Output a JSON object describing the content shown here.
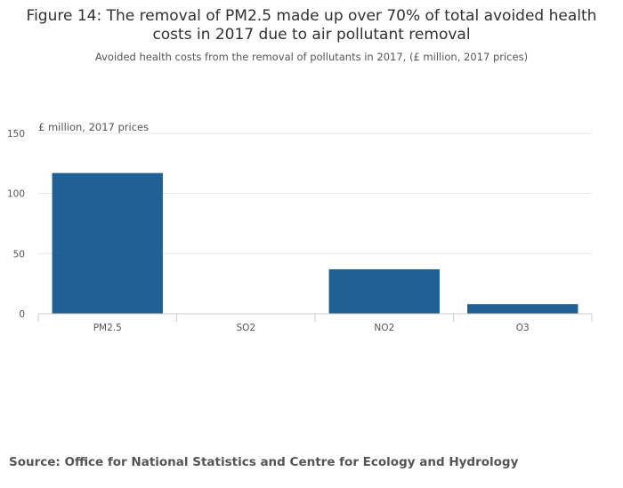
{
  "chart_data": {
    "type": "bar",
    "title": "Figure 14: The removal of PM2.5 made up over 70% of total avoided health costs in 2017 due to air pollutant removal",
    "subtitle": "Avoided health costs from the removal of pollutants in 2017, (£ million, 2017 prices)",
    "ylabel": "£ million, 2017 prices",
    "categories": [
      "PM2.5",
      "SO2",
      "NO2",
      "O3"
    ],
    "values": [
      117,
      0,
      37,
      8
    ],
    "ylim": [
      0,
      150
    ],
    "yticks": [
      0,
      50,
      100,
      150
    ],
    "grid": true,
    "bar_color": "#206095",
    "grid_color": "#e6e6e6",
    "axis_color": "#cccccc"
  },
  "source": "Source: Office for National Statistics and Centre for Ecology and Hydrology"
}
